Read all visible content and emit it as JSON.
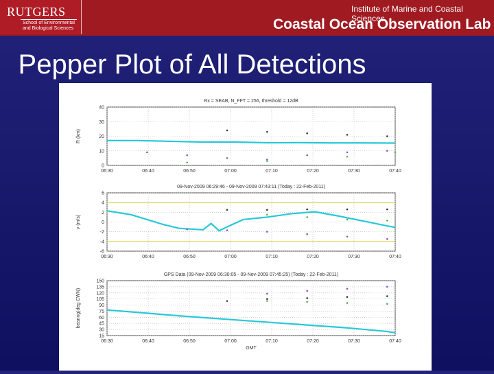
{
  "header": {
    "logo_text": "RUTGERS",
    "logo_subtitle": "School of Environmental and Biological Sciences",
    "institute": "Institute of Marine and Coastal Sciences",
    "lab": "Coastal Ocean Observation Lab"
  },
  "slide": {
    "title": "Pepper Plot of All Detections"
  },
  "chart_data": [
    {
      "type": "scatter",
      "title": "Rx = SEAB, N_FFT = 256, threshold = 12dB",
      "ylabel": "R (km)",
      "ylim": [
        0,
        40
      ],
      "yticks": [
        0,
        10,
        20,
        30,
        40
      ],
      "xticks": [
        "06:30",
        "06:40",
        "06:50",
        "07:00",
        "07:10",
        "07:20",
        "07:30",
        "07:40"
      ],
      "grid": true,
      "series": [
        {
          "color": "#28c8d8",
          "points": [
            [
              0,
              17
            ],
            [
              8,
              17
            ],
            [
              16,
              16.5
            ],
            [
              24,
              16
            ],
            [
              32,
              16
            ],
            [
              40,
              15.5
            ],
            [
              48,
              15.6
            ],
            [
              56,
              15.4
            ],
            [
              64,
              15.4
            ],
            [
              72,
              15.3
            ]
          ]
        },
        {
          "color": "#333333",
          "points": [
            [
              30,
              24
            ],
            [
              40,
              23
            ],
            [
              50,
              22
            ],
            [
              60,
              21
            ],
            [
              70,
              20
            ]
          ]
        },
        {
          "color": "#9050c0",
          "points": [
            [
              10,
              9
            ],
            [
              20,
              7
            ],
            [
              30,
              5
            ],
            [
              40,
              4
            ],
            [
              50,
              7
            ],
            [
              60,
              9
            ],
            [
              70,
              10
            ]
          ]
        },
        {
          "color": "#50b050",
          "points": [
            [
              20,
              2
            ],
            [
              40,
              3
            ],
            [
              60,
              6
            ],
            [
              72,
              9
            ]
          ]
        }
      ]
    },
    {
      "type": "scatter",
      "title": "09-Nov-2009 06:29:46 - 09-Nov-2009 07:43:11 (Today : 22-Feb-2011)",
      "ylabel": "v (m/s)",
      "ylim": [
        -6,
        6
      ],
      "yticks": [
        -6,
        -4,
        -2,
        0,
        2,
        4,
        6
      ],
      "xticks": [
        "06:30",
        "06:40",
        "06:50",
        "07:00",
        "07:10",
        "07:20",
        "07:30",
        "07:40"
      ],
      "grid": true,
      "hlines": [
        4,
        -4
      ],
      "series": [
        {
          "color": "#28c8d8",
          "points": [
            [
              0,
              2.3
            ],
            [
              6,
              1.5
            ],
            [
              10,
              0.5
            ],
            [
              14,
              -0.5
            ],
            [
              18,
              -1.3
            ],
            [
              24,
              -1.6
            ],
            [
              26,
              -0.3
            ],
            [
              28,
              -1.8
            ],
            [
              30,
              -1
            ],
            [
              34,
              0.5
            ],
            [
              40,
              1
            ],
            [
              46,
              1.7
            ],
            [
              52,
              2.1
            ],
            [
              58,
              1.2
            ],
            [
              64,
              0.2
            ],
            [
              70,
              -0.8
            ],
            [
              72,
              -1.1
            ]
          ]
        },
        {
          "color": "#9050c0",
          "points": [
            [
              20,
              -1.5
            ],
            [
              30,
              -1.7
            ],
            [
              40,
              -2
            ],
            [
              50,
              -2.5
            ],
            [
              60,
              -3
            ],
            [
              70,
              -3.5
            ]
          ]
        },
        {
          "color": "#333333",
          "points": [
            [
              30,
              2.5
            ],
            [
              40,
              2.5
            ],
            [
              50,
              2.6
            ],
            [
              60,
              2.6
            ],
            [
              70,
              2.6
            ]
          ]
        },
        {
          "color": "#50b050",
          "points": [
            [
              40,
              1.5
            ],
            [
              50,
              1
            ],
            [
              60,
              0.5
            ],
            [
              70,
              0.3
            ]
          ]
        }
      ]
    },
    {
      "type": "scatter",
      "title": "GPS Data (09-Nov-2009 06:30:05 - 09-Nov-2009 07:45:25) (Today : 22-Feb-2011)",
      "xlabel": "GMT",
      "ylabel": "bearing(deg CWN)",
      "ylim": [
        15,
        150
      ],
      "yticks": [
        15,
        30,
        45,
        60,
        75,
        90,
        105,
        120,
        135,
        150
      ],
      "xticks": [
        "06:30",
        "06:40",
        "06:50",
        "07:00",
        "07:10",
        "07:20",
        "07:30",
        "07:40"
      ],
      "grid": true,
      "series": [
        {
          "color": "#28c8d8",
          "points": [
            [
              0,
              78
            ],
            [
              10,
              70
            ],
            [
              20,
              62
            ],
            [
              30,
              55
            ],
            [
              40,
              48
            ],
            [
              50,
              41
            ],
            [
              60,
              34
            ],
            [
              70,
              25
            ],
            [
              72,
              22
            ]
          ]
        },
        {
          "color": "#333333",
          "points": [
            [
              30,
              100
            ],
            [
              40,
              105
            ],
            [
              50,
              107
            ],
            [
              60,
              110
            ],
            [
              70,
              112
            ]
          ]
        },
        {
          "color": "#9050c0",
          "points": [
            [
              40,
              118
            ],
            [
              50,
              125
            ],
            [
              60,
              130
            ],
            [
              70,
              135
            ]
          ]
        },
        {
          "color": "#50b050",
          "points": [
            [
              40,
              100
            ],
            [
              50,
              98
            ],
            [
              60,
              95
            ],
            [
              70,
              93
            ]
          ]
        }
      ]
    }
  ]
}
